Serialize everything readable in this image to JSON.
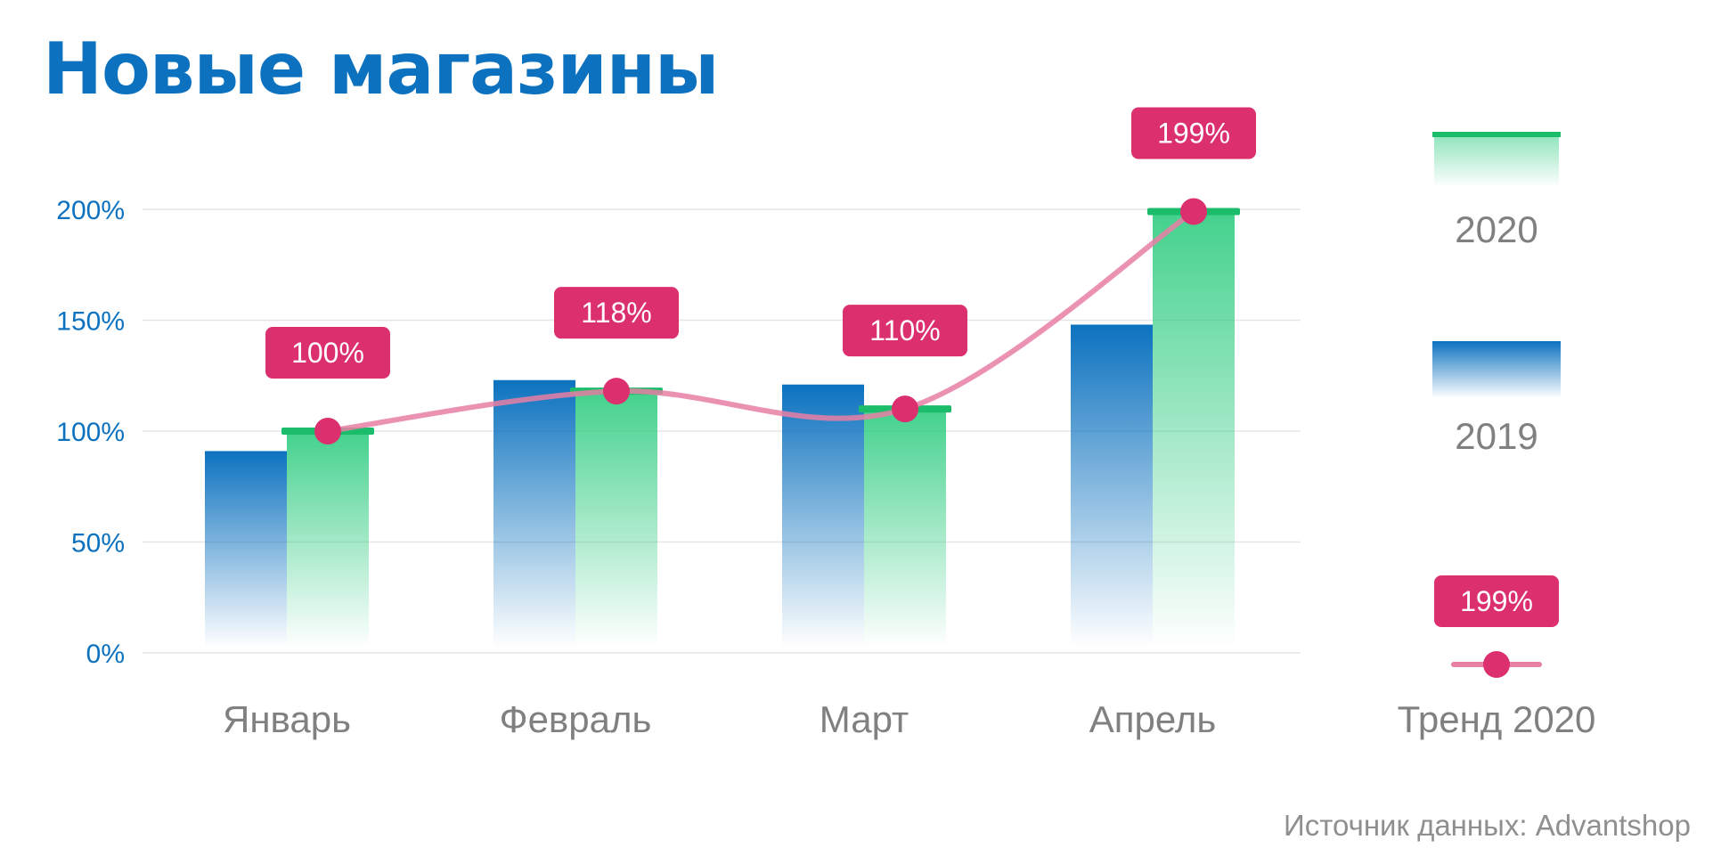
{
  "title": "Новые магазины",
  "source": "Источник данных: Advantshop",
  "chart_data": {
    "type": "bar",
    "title": "Новые магазины",
    "categories": [
      "Январь",
      "Февраль",
      "Март",
      "Апрель"
    ],
    "series": [
      {
        "name": "2019",
        "type": "bar",
        "values": [
          91,
          123,
          121,
          148
        ],
        "color": "#0c72bf"
      },
      {
        "name": "2020",
        "type": "bar",
        "values": [
          100,
          118,
          110,
          199
        ],
        "color": "#2ecc80",
        "cap_color": "#1bbd6a"
      },
      {
        "name": "Тренд 2020",
        "type": "line",
        "values": [
          100,
          118,
          110,
          199
        ],
        "color": "#e87fa5",
        "marker_color": "#dc2f6e"
      }
    ],
    "data_labels": [
      "100%",
      "118%",
      "110%",
      "199%"
    ],
    "yticks": [
      "0%",
      "50%",
      "100%",
      "150%",
      "200%"
    ],
    "ytick_values": [
      0,
      50,
      100,
      150,
      200
    ],
    "ylim": [
      0,
      200
    ],
    "grid": true,
    "legend": {
      "position": "right",
      "items": [
        {
          "label": "2020",
          "kind": "bar-2020"
        },
        {
          "label": "2019",
          "kind": "bar-2019"
        },
        {
          "label": "Тренд 2020",
          "kind": "trend",
          "badge": "199%"
        }
      ]
    },
    "colors": {
      "ytick": "#0c72bf",
      "xtick": "#808080",
      "badge": "#dc2f6e",
      "grid": "#e6e6e6"
    }
  }
}
